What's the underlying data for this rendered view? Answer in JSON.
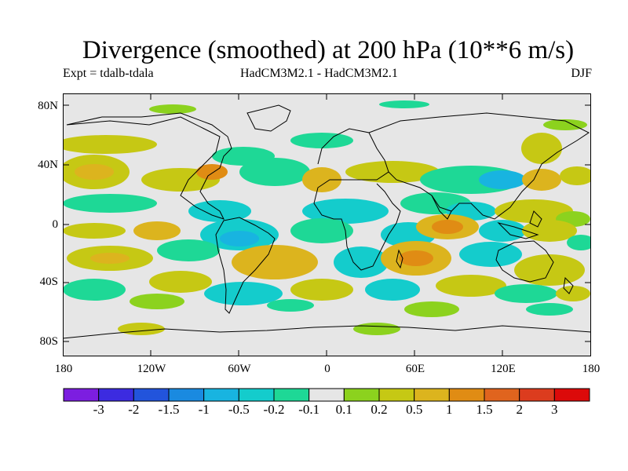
{
  "header": {
    "title": "Divergence (smoothed) at 200 hPa (10**6 m/s)",
    "experiment": "Expt = tdalb-tdala",
    "model": "HadCM3M2.1 - HadCM3M2.1",
    "season": "DJF"
  },
  "axes": {
    "lat_labels": [
      "80N",
      "40N",
      "0",
      "40S",
      "80S"
    ],
    "lon_labels": [
      "180",
      "120W",
      "60W",
      "0",
      "60E",
      "120E",
      "180"
    ]
  },
  "colorbar": {
    "labels": [
      "-3",
      "-2",
      "-1.5",
      "-1",
      "-0.5",
      "-0.2",
      "-0.1",
      "0.1",
      "0.2",
      "0.5",
      "1",
      "1.5",
      "2",
      "3"
    ],
    "colors": [
      "#7c1ee0",
      "#3c2be0",
      "#2254dc",
      "#1a8ae0",
      "#18b4e0",
      "#14cccc",
      "#1ed896",
      "#e6e6e6",
      "#8cd21e",
      "#c6c814",
      "#dcb41e",
      "#e08c14",
      "#e0641e",
      "#dc3c1e",
      "#dc0a0a"
    ]
  },
  "map": {
    "background_color": "#e6e6e6",
    "land_outline_color": "#000000"
  }
}
